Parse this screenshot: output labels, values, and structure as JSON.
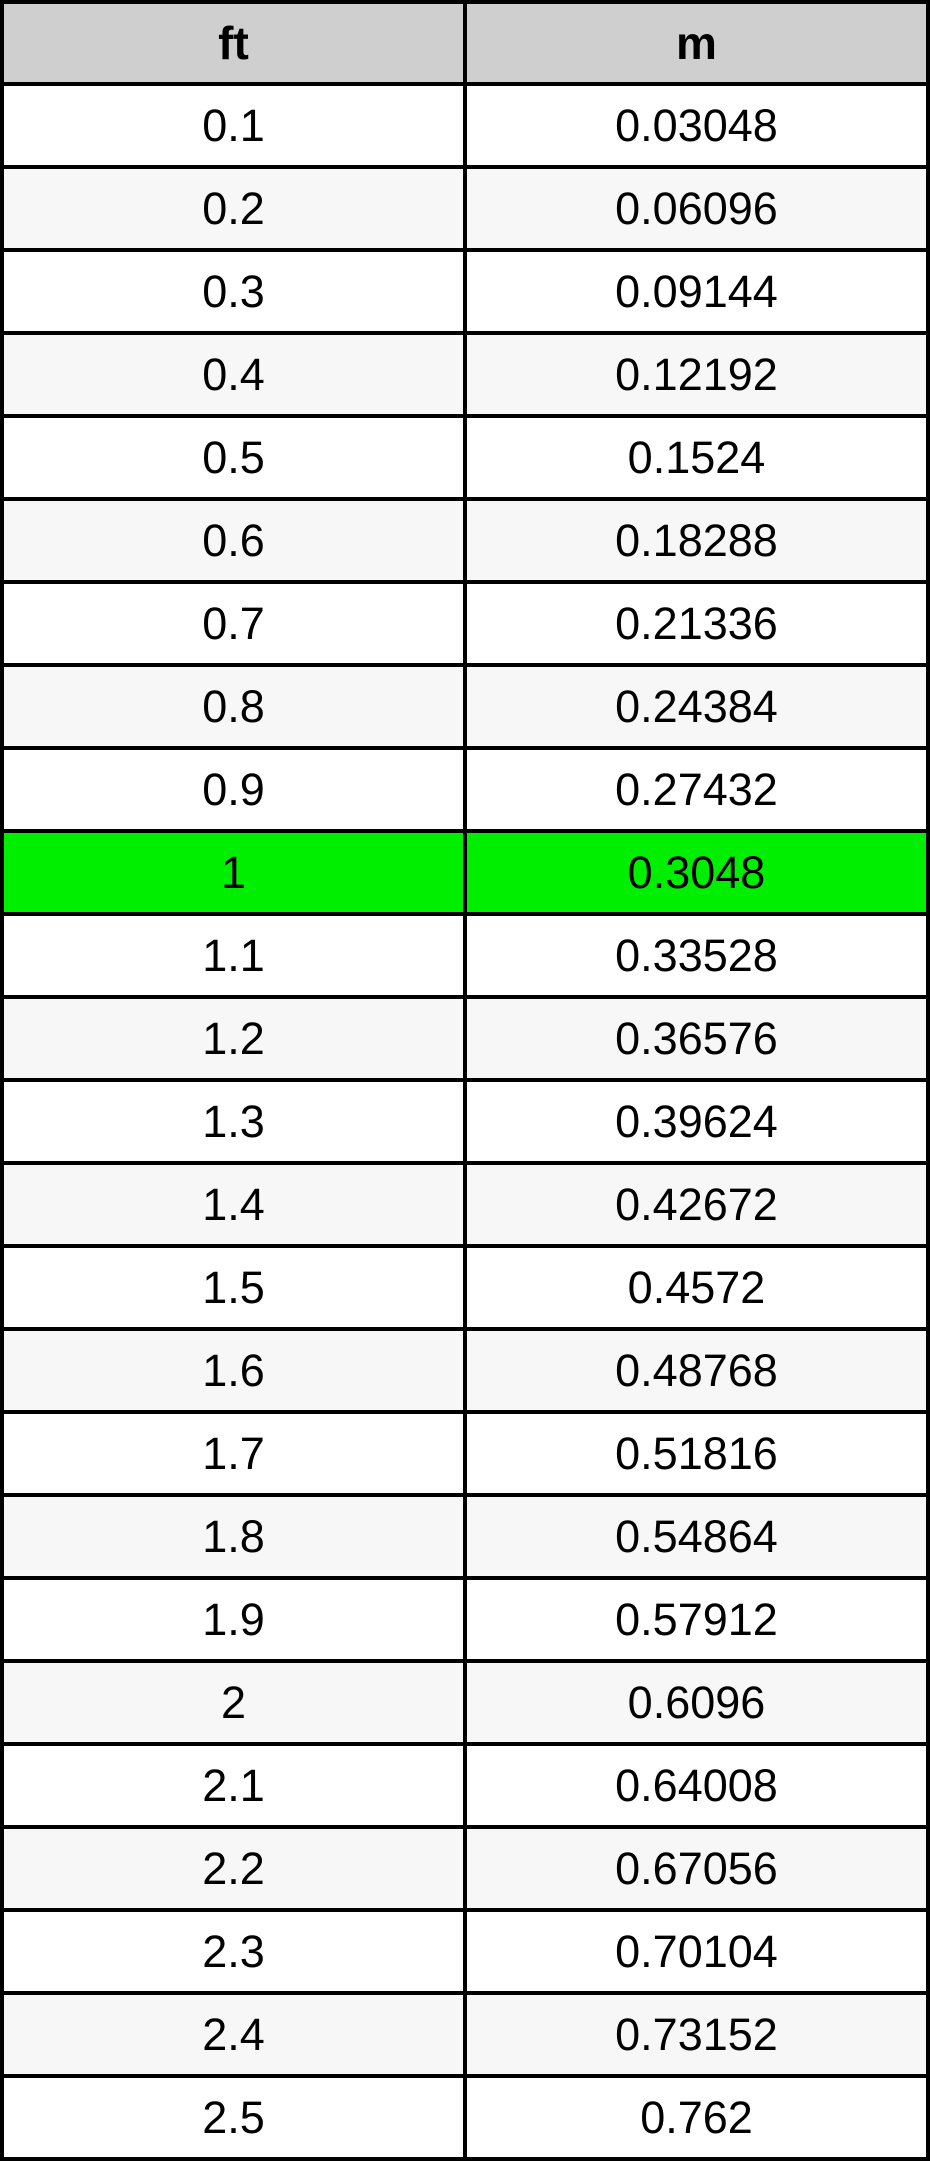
{
  "chart_data": {
    "type": "table",
    "columns": [
      "ft",
      "m"
    ],
    "rows": [
      [
        "0.1",
        "0.03048"
      ],
      [
        "0.2",
        "0.06096"
      ],
      [
        "0.3",
        "0.09144"
      ],
      [
        "0.4",
        "0.12192"
      ],
      [
        "0.5",
        "0.1524"
      ],
      [
        "0.6",
        "0.18288"
      ],
      [
        "0.7",
        "0.21336"
      ],
      [
        "0.8",
        "0.24384"
      ],
      [
        "0.9",
        "0.27432"
      ],
      [
        "1",
        "0.3048"
      ],
      [
        "1.1",
        "0.33528"
      ],
      [
        "1.2",
        "0.36576"
      ],
      [
        "1.3",
        "0.39624"
      ],
      [
        "1.4",
        "0.42672"
      ],
      [
        "1.5",
        "0.4572"
      ],
      [
        "1.6",
        "0.48768"
      ],
      [
        "1.7",
        "0.51816"
      ],
      [
        "1.8",
        "0.54864"
      ],
      [
        "1.9",
        "0.57912"
      ],
      [
        "2",
        "0.6096"
      ],
      [
        "2.1",
        "0.64008"
      ],
      [
        "2.2",
        "0.67056"
      ],
      [
        "2.3",
        "0.70104"
      ],
      [
        "2.4",
        "0.73152"
      ],
      [
        "2.5",
        "0.762"
      ]
    ],
    "highlighted_row_index": 9,
    "layout": {
      "zebra_striping": true,
      "first_data_row_background": "white",
      "legend": "none",
      "grid": "full-borders"
    }
  },
  "table": {
    "headers": [
      "ft",
      "m"
    ]
  },
  "colors": {
    "header_bg": "#CFCFCF",
    "row_bg": "#FFFFFF",
    "row_alt_bg": "#F7F7F7",
    "highlight_bg": "#00EE00",
    "border": "#000000",
    "text": "#000000"
  }
}
